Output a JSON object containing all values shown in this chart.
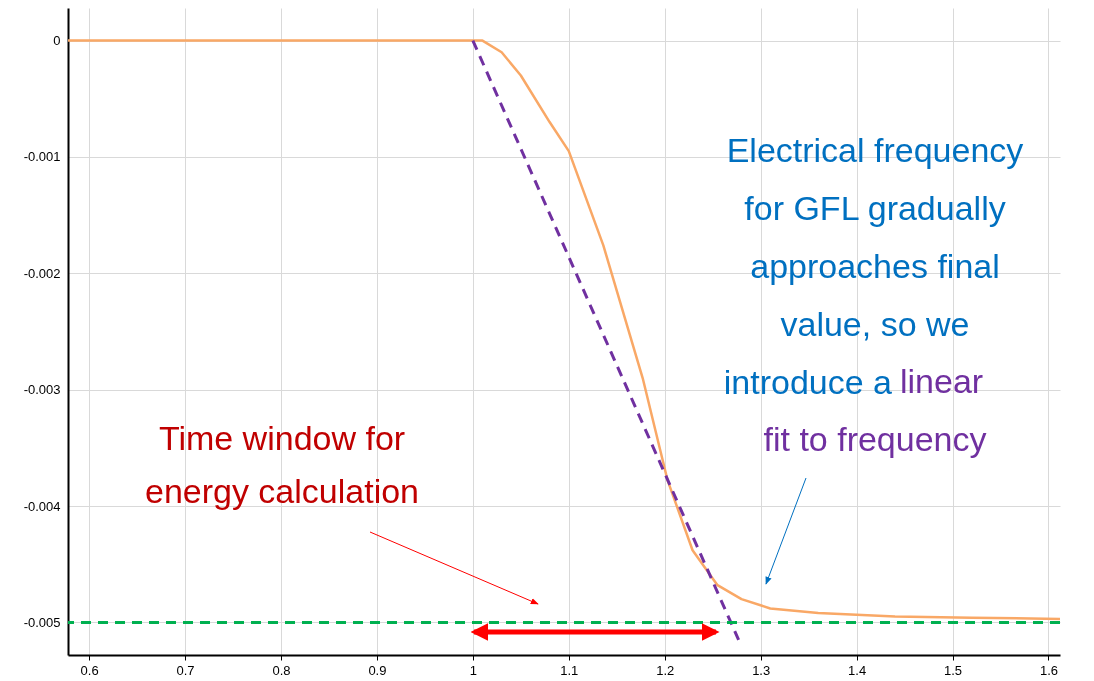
{
  "chart_data": {
    "type": "line",
    "x": [
      0.578,
      0.9,
      1.0,
      1.01,
      1.03,
      1.05,
      1.08,
      1.1,
      1.136,
      1.177,
      1.203,
      1.229,
      1.255,
      1.28,
      1.31,
      1.36,
      1.44,
      1.52,
      1.612
    ],
    "series": [
      {
        "color": "#f9a866",
        "line_style": "solid",
        "values": [
          0,
          0,
          0,
          0,
          -0.0001,
          -0.0003,
          -0.0007,
          -0.00095,
          -0.00176,
          -0.0029,
          -0.00378,
          -0.00438,
          -0.00468,
          -0.0048,
          -0.00488,
          -0.00492,
          -0.00495,
          -0.00496,
          -0.00497
        ]
      },
      {
        "type": "line",
        "color": "#7030a0",
        "line_style": "dashed",
        "x": [
          1.0,
          1.277
        ],
        "values": [
          0,
          -0.00515
        ]
      }
    ],
    "xlim": [
      0.578,
      1.612
    ],
    "ylim": [
      -0.00528,
      0.00028
    ],
    "xticks": [
      0.6,
      0.7,
      0.8,
      0.9,
      1,
      1.1,
      1.2,
      1.3,
      1.4,
      1.5,
      1.6
    ],
    "yticks": [
      0,
      -0.001,
      -0.002,
      -0.003,
      -0.004,
      -0.005
    ],
    "grid": true,
    "ref_lines": [
      {
        "axis": "y",
        "value": -0.005,
        "color": "#00b050",
        "line_style": "dashed"
      }
    ],
    "annotations": [
      "Time window for\nenergy calculation",
      "Electrical frequency\nfor GFL gradually\napproaches final\nvalue, so we\nintroduce a",
      "linear\nfit to frequency"
    ]
  }
}
